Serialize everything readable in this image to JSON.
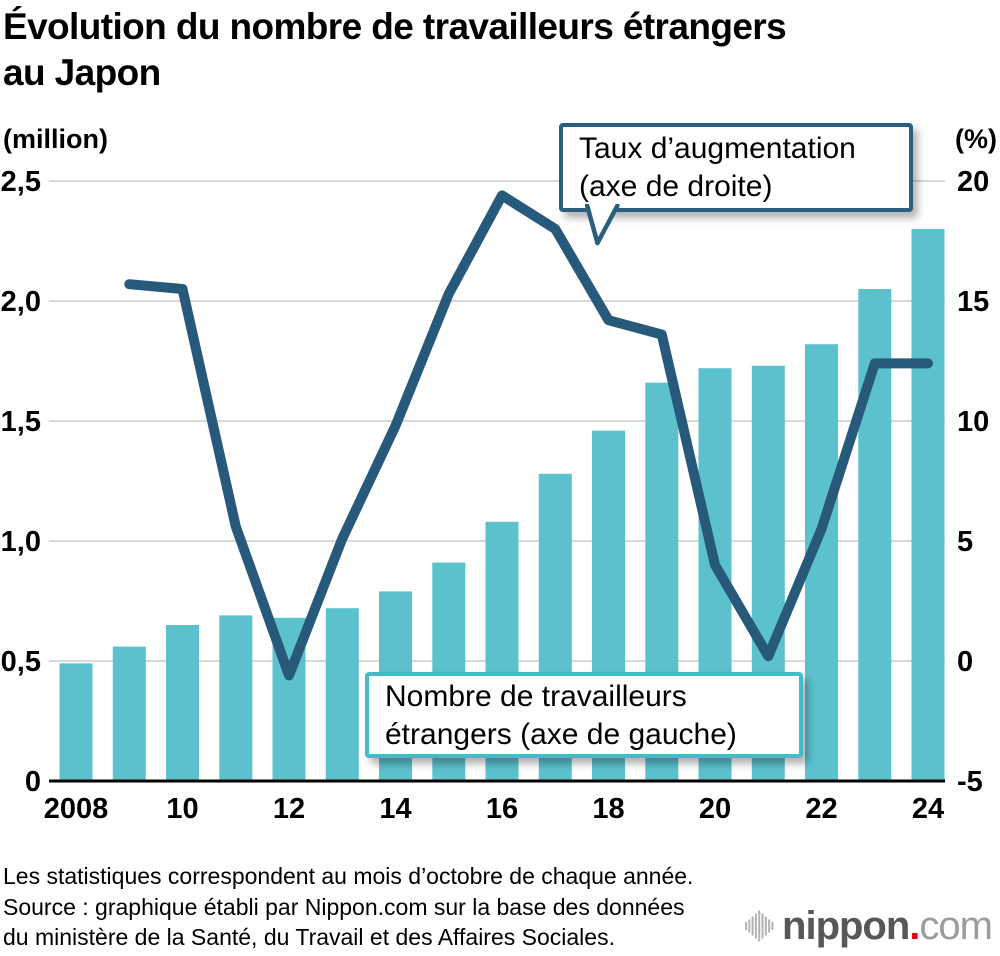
{
  "title": {
    "lines": [
      "Évolution du nombre de travailleurs étrangers",
      "au Japon"
    ]
  },
  "left_axis_unit": "(million)",
  "right_axis_unit": "(%)",
  "annotations": {
    "rate": {
      "line1": "Taux d’augmentation",
      "line2": "(axe de droite)"
    },
    "workers": {
      "line1": "Nombre de travailleurs",
      "line2": "étrangers (axe de gauche)"
    }
  },
  "footer": {
    "lines": [
      "Les statistiques correspondent au mois d’octobre de chaque année.",
      "Source : graphique établi par Nippon.com sur la base des données",
      "du ministère de la Santé, du Travail et des Affaires Sociales."
    ]
  },
  "logo": {
    "name": "nippon",
    "dot": ".",
    "tld": "com"
  },
  "colors": {
    "bar": "#5bc1cd",
    "line": "#27597a",
    "grid": "#d8d8d8",
    "axis": "#000000",
    "rate_box_border": "#2c5e7e",
    "workers_box_border": "#47bac9",
    "logo_dark": "#585757",
    "logo_light": "#9c9c9d",
    "logo_red": "#e60012",
    "logo_icon": "#b2b2b3"
  },
  "chart_data": {
    "type": "bar",
    "subtype": "bar+line combo, dual axis",
    "title": "Évolution du nombre de travailleurs étrangers au Japon",
    "categories": [
      2008,
      2009,
      2010,
      2011,
      2012,
      2013,
      2014,
      2015,
      2016,
      2017,
      2018,
      2019,
      2020,
      2021,
      2022,
      2023,
      2024
    ],
    "series": [
      {
        "name": "Nombre de travailleurs étrangers (axe de gauche)",
        "type": "bar",
        "axis": "left",
        "unit": "million",
        "values": [
          0.49,
          0.56,
          0.65,
          0.69,
          0.68,
          0.72,
          0.79,
          0.91,
          1.08,
          1.28,
          1.46,
          1.66,
          1.72,
          1.73,
          1.82,
          2.05,
          2.3
        ]
      },
      {
        "name": "Taux d’augmentation (axe de droite)",
        "type": "line",
        "axis": "right",
        "unit": "%",
        "values": [
          null,
          15.7,
          15.5,
          5.6,
          -0.6,
          5.1,
          9.8,
          15.3,
          19.4,
          18.0,
          14.2,
          13.6,
          4.0,
          0.2,
          5.5,
          12.4,
          12.4
        ]
      }
    ],
    "left_axis": {
      "label": "(million)",
      "ticks": [
        "0",
        "0,5",
        "1,0",
        "1,5",
        "2,0",
        "2,5"
      ],
      "values": [
        0,
        0.5,
        1.0,
        1.5,
        2.0,
        2.5
      ],
      "range": [
        0,
        2.5
      ]
    },
    "right_axis": {
      "label": "(%)",
      "ticks": [
        "-5",
        "0",
        "5",
        "10",
        "15",
        "20"
      ],
      "values": [
        -5,
        0,
        5,
        10,
        15,
        20
      ],
      "range": [
        -5,
        20
      ]
    },
    "x_ticks": {
      "labels": [
        "2008",
        "10",
        "12",
        "14",
        "16",
        "18",
        "20",
        "22",
        "24"
      ],
      "indices": [
        0,
        2,
        4,
        6,
        8,
        10,
        12,
        14,
        16
      ]
    },
    "grid": true,
    "legend_position": "callout boxes inside plot"
  }
}
